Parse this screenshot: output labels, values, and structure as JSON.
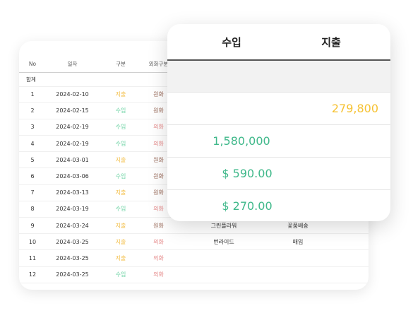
{
  "table": {
    "headers": {
      "no": "No",
      "date": "일자",
      "type": "구분",
      "currency": "외화구분"
    },
    "total_label": "합계",
    "rows": [
      {
        "no": "1",
        "date": "2024-02-10",
        "type": "지출",
        "currency": "원화",
        "extra1": "",
        "extra2": ""
      },
      {
        "no": "2",
        "date": "2024-02-15",
        "type": "수입",
        "currency": "원화",
        "extra1": "",
        "extra2": ""
      },
      {
        "no": "3",
        "date": "2024-02-19",
        "type": "수입",
        "currency": "외화",
        "extra1": "",
        "extra2": ""
      },
      {
        "no": "4",
        "date": "2024-02-19",
        "type": "수입",
        "currency": "외화",
        "extra1": "",
        "extra2": ""
      },
      {
        "no": "5",
        "date": "2024-03-01",
        "type": "지출",
        "currency": "원화",
        "extra1": "",
        "extra2": ""
      },
      {
        "no": "6",
        "date": "2024-03-06",
        "type": "수입",
        "currency": "원화",
        "extra1": "",
        "extra2": ""
      },
      {
        "no": "7",
        "date": "2024-03-13",
        "type": "지출",
        "currency": "원화",
        "extra1": "",
        "extra2": ""
      },
      {
        "no": "8",
        "date": "2024-03-19",
        "type": "수입",
        "currency": "외화",
        "extra1": "",
        "extra2": ""
      },
      {
        "no": "9",
        "date": "2024-03-24",
        "type": "지출",
        "currency": "원화",
        "extra1": "그린플라워",
        "extra2": "꽃품배송"
      },
      {
        "no": "10",
        "date": "2024-03-25",
        "type": "지출",
        "currency": "외화",
        "extra1": "번라이드",
        "extra2": "매입"
      },
      {
        "no": "11",
        "date": "2024-03-25",
        "type": "지출",
        "currency": "외화",
        "extra1": "",
        "extra2": ""
      },
      {
        "no": "12",
        "date": "2024-03-25",
        "type": "수입",
        "currency": "외화",
        "extra1": "",
        "extra2": ""
      }
    ]
  },
  "summary": {
    "header_in": "수입",
    "header_out": "지출",
    "out_krw": "279,800",
    "in_krw": "1,580,000",
    "in_usd_1": "$ 590.00",
    "in_usd_2": "$ 270.00"
  },
  "colors": {
    "income": "#3fb88a",
    "expense": "#f6c232"
  }
}
